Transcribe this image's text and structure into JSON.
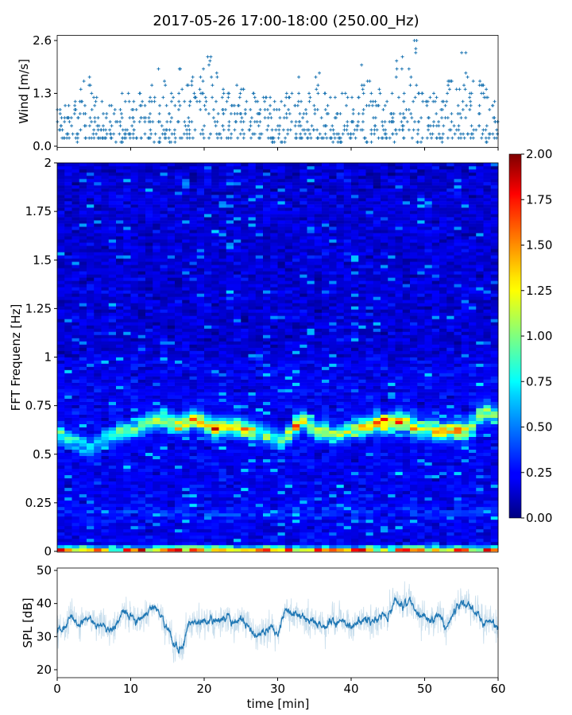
{
  "title": "2017-05-26 17:00-18:00 (250.00_Hz)",
  "colors": {
    "series": "#1f77b4",
    "axis": "#000000"
  },
  "chart_data": [
    {
      "type": "scatter",
      "name": "wind",
      "ylabel": "Wind [m/s]",
      "xlim": [
        0,
        60
      ],
      "ylim": [
        0,
        2.6
      ],
      "yticks": [
        0.0,
        1.3,
        2.6
      ],
      "ytick_labels": [
        "0.0",
        "1.3",
        "2.6"
      ],
      "xticks": [
        0,
        10,
        20,
        30,
        40,
        50,
        60
      ],
      "marker": "+",
      "minute_max": [
        0.9,
        1.0,
        1.1,
        1.6,
        1.7,
        1.2,
        1.1,
        1.0,
        1.3,
        1.3,
        1.1,
        1.3,
        1.5,
        1.9,
        1.6,
        1.3,
        1.9,
        1.5,
        1.7,
        1.9,
        2.2,
        1.8,
        1.4,
        1.3,
        1.5,
        1.4,
        1.3,
        1.1,
        1.2,
        1.1,
        1.1,
        1.3,
        1.7,
        1.1,
        1.3,
        1.8,
        1.3,
        1.2,
        1.3,
        1.3,
        1.2,
        2.0,
        1.6,
        1.4,
        1.1,
        1.3,
        2.2,
        1.9,
        2.6,
        1.3,
        1.2,
        1.3,
        1.1,
        1.6,
        1.4,
        2.3,
        1.6,
        1.6,
        1.4,
        1.1
      ],
      "minute_min": [
        0.2,
        0.2,
        0.1,
        0.2,
        0.2,
        0.2,
        0.2,
        0.1,
        0.1,
        0.2,
        0.2,
        0.2,
        0.2,
        0.1,
        0.2,
        0.1,
        0.1,
        0.2,
        0.1,
        0.2,
        0.2,
        0.2,
        0.2,
        0.2,
        0.2,
        0.2,
        0.2,
        0.2,
        0.2,
        0.1,
        0.1,
        0.2,
        0.2,
        0.2,
        0.2,
        0.2,
        0.2,
        0.1,
        0.1,
        0.2,
        0.2,
        0.2,
        0.1,
        0.2,
        0.2,
        0.1,
        0.2,
        0.2,
        0.2,
        0.1,
        0.2,
        0.2,
        0.1,
        0.2,
        0.2,
        0.2,
        0.2,
        0.2,
        0.1,
        0.2
      ]
    },
    {
      "type": "heatmap",
      "name": "spectrogram",
      "ylabel": "FFT Frequenz [Hz]",
      "xlim": [
        0,
        60
      ],
      "ylim": [
        0,
        2
      ],
      "yticks": [
        0,
        0.25,
        0.5,
        0.75,
        1,
        1.25,
        1.5,
        1.75,
        2
      ],
      "ytick_labels": [
        "0",
        "0.25",
        "0.5",
        "0.75",
        "1",
        "1.25",
        "1.5",
        "1.75",
        "2"
      ],
      "colormap": "jet",
      "clim": [
        0,
        2
      ],
      "colorbar_ticks": [
        "0.00",
        "0.25",
        "0.50",
        "0.75",
        "1.00",
        "1.25",
        "1.50",
        "1.75",
        "2.00"
      ],
      "background_level": 0.2,
      "band_peak_freq_per_minute": [
        0.6,
        0.58,
        0.57,
        0.55,
        0.53,
        0.55,
        0.58,
        0.6,
        0.62,
        0.62,
        0.63,
        0.65,
        0.67,
        0.68,
        0.68,
        0.66,
        0.65,
        0.66,
        0.68,
        0.67,
        0.65,
        0.63,
        0.64,
        0.64,
        0.64,
        0.63,
        0.62,
        0.62,
        0.6,
        0.58,
        0.57,
        0.6,
        0.65,
        0.67,
        0.64,
        0.62,
        0.62,
        0.6,
        0.61,
        0.62,
        0.63,
        0.64,
        0.65,
        0.66,
        0.66,
        0.66,
        0.67,
        0.66,
        0.64,
        0.63,
        0.63,
        0.62,
        0.62,
        0.62,
        0.62,
        0.62,
        0.65,
        0.7,
        0.72,
        0.7
      ],
      "band_peak_level_per_minute": [
        0.9,
        0.9,
        0.8,
        0.8,
        0.7,
        0.7,
        0.8,
        0.9,
        1.0,
        1.0,
        1.0,
        1.1,
        1.2,
        1.1,
        1.2,
        1.3,
        1.4,
        1.4,
        1.5,
        1.5,
        1.6,
        1.6,
        1.4,
        1.4,
        1.4,
        1.5,
        1.3,
        1.0,
        1.0,
        0.9,
        1.0,
        1.2,
        1.6,
        1.4,
        1.2,
        1.2,
        1.1,
        1.1,
        1.2,
        1.2,
        1.3,
        1.4,
        1.5,
        1.6,
        1.6,
        1.6,
        1.7,
        1.5,
        1.4,
        1.4,
        1.3,
        1.4,
        1.5,
        1.6,
        1.6,
        1.5,
        1.3,
        1.1,
        1.1,
        1.0
      ],
      "low_freq_level": 1.6
    },
    {
      "type": "line",
      "name": "spl",
      "xlabel": "time [min]",
      "ylabel": "SPL [dB]",
      "xlim": [
        0,
        60
      ],
      "ylim": [
        17.5,
        50.5
      ],
      "yticks": [
        20,
        30,
        40,
        50
      ],
      "ytick_labels": [
        "20",
        "30",
        "40",
        "50"
      ],
      "xticks": [
        0,
        10,
        20,
        30,
        40,
        50,
        60
      ],
      "xtick_labels": [
        "0",
        "10",
        "20",
        "30",
        "40",
        "50",
        "60"
      ],
      "x_minutes": [
        0,
        1,
        2,
        3,
        4,
        5,
        6,
        7,
        8,
        9,
        10,
        11,
        12,
        13,
        14,
        15,
        16,
        17,
        18,
        19,
        20,
        21,
        22,
        23,
        24,
        25,
        26,
        27,
        28,
        29,
        30,
        31,
        32,
        33,
        34,
        35,
        36,
        37,
        38,
        39,
        40,
        41,
        42,
        43,
        44,
        45,
        46,
        47,
        48,
        49,
        50,
        51,
        52,
        53,
        54,
        55,
        56,
        57,
        58,
        59,
        60
      ],
      "mean_db": [
        31,
        33,
        36,
        33,
        35,
        34,
        33,
        32,
        33,
        38,
        36,
        34,
        37,
        39,
        38,
        33,
        27,
        27,
        34,
        34,
        34,
        35,
        35,
        37,
        34,
        35,
        33,
        30,
        31,
        33,
        31,
        38,
        38,
        36,
        35,
        34,
        33,
        34,
        35,
        35,
        33,
        34,
        35,
        35,
        35,
        36,
        41,
        39,
        41,
        37,
        36,
        35,
        37,
        33,
        37,
        40,
        40,
        37,
        34,
        34,
        33
      ],
      "spread_db": 3.5
    }
  ]
}
